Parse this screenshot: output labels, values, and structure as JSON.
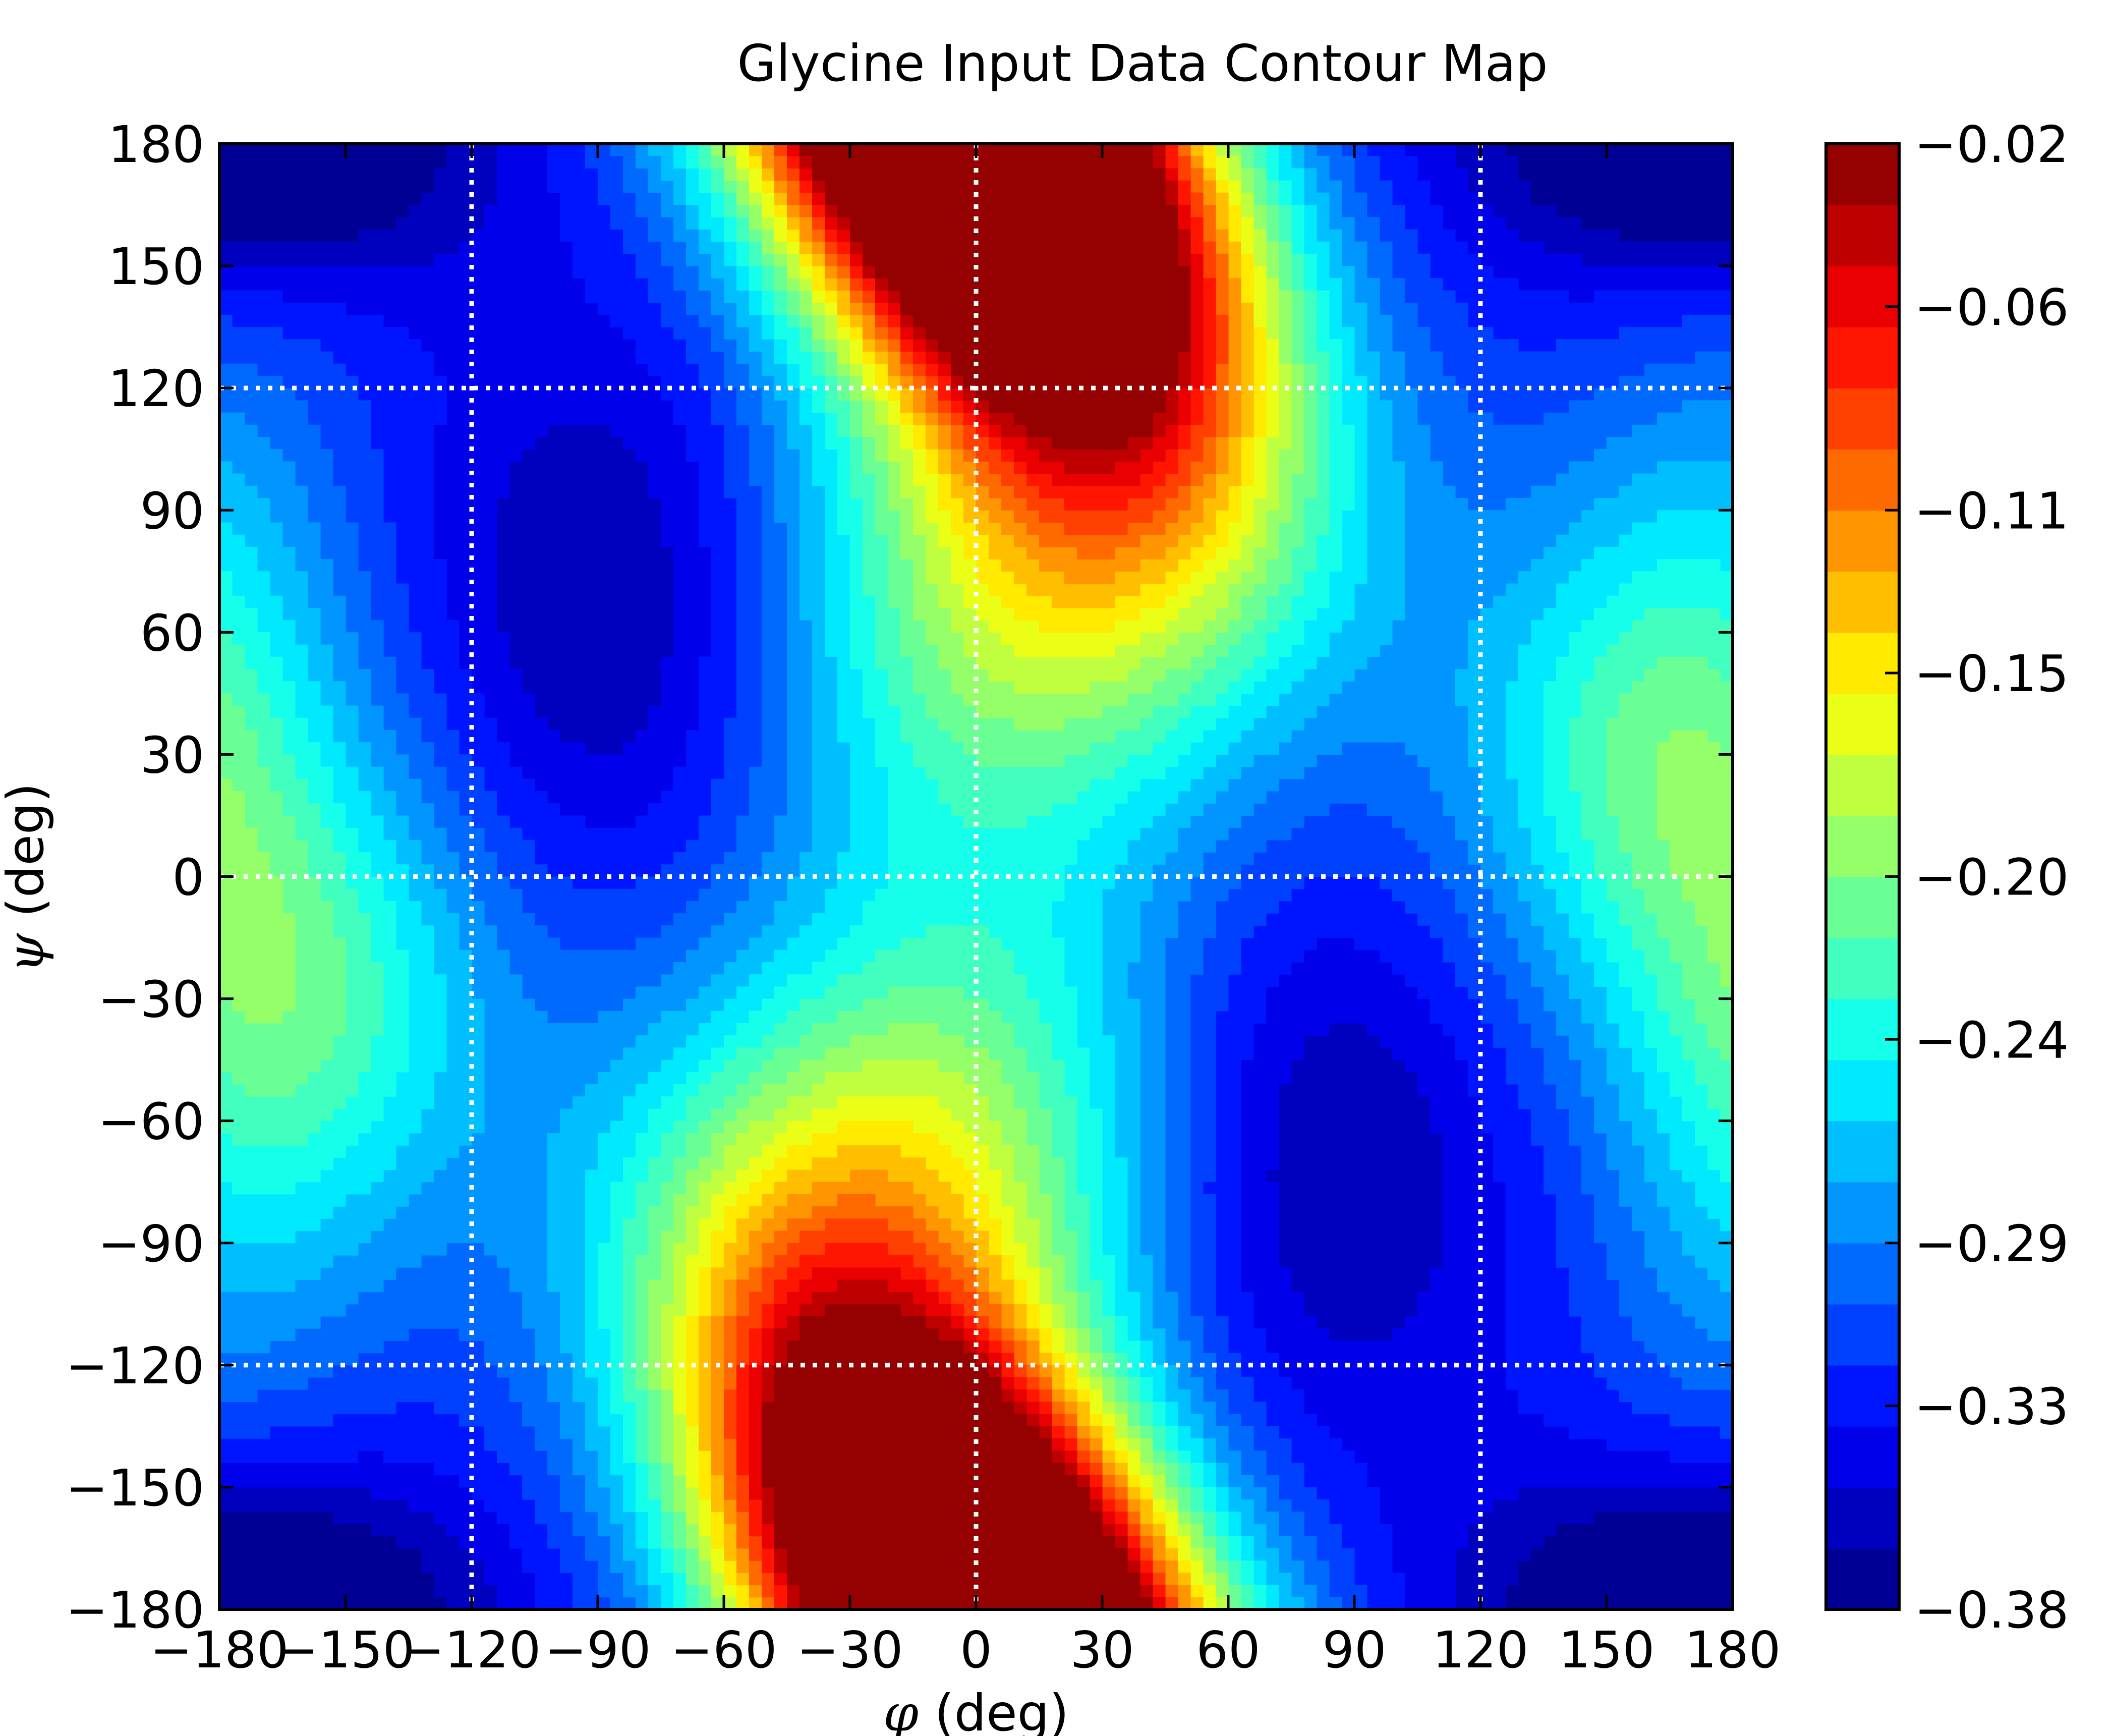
{
  "chart_data": {
    "type": "heatmap",
    "subtype": "filled-contour",
    "title": "Glycine Input Data Contour Map",
    "xlabel": {
      "symbol": "φ",
      "text": " (deg)"
    },
    "ylabel": {
      "symbol": "ψ",
      "text": " (deg)"
    },
    "xlim": [
      -180,
      180
    ],
    "ylim": [
      -180,
      180
    ],
    "xticks": [
      -180,
      -150,
      -120,
      -90,
      -60,
      -30,
      0,
      30,
      60,
      90,
      120,
      150,
      180
    ],
    "yticks": [
      -180,
      -150,
      -120,
      -90,
      -60,
      -30,
      0,
      30,
      60,
      90,
      120,
      150,
      180
    ],
    "xtick_labels": [
      "−180",
      "−150",
      "−120",
      "−90",
      "−60",
      "−30",
      "0",
      "30",
      "60",
      "90",
      "120",
      "150",
      "180"
    ],
    "ytick_labels": [
      "−180",
      "−150",
      "−120",
      "−90",
      "−60",
      "−30",
      "0",
      "30",
      "60",
      "90",
      "120",
      "150",
      "180"
    ],
    "grid": {
      "on": true,
      "style": "dotted",
      "color": "#ffffff",
      "x_lines": [
        -120,
        0,
        120
      ],
      "y_lines": [
        -120,
        0,
        120
      ]
    },
    "colormap": "jet",
    "colorbar": {
      "min": -0.38,
      "max": -0.02,
      "tick_values": [
        -0.02,
        -0.06,
        -0.11,
        -0.15,
        -0.2,
        -0.24,
        -0.29,
        -0.33,
        -0.38
      ],
      "tick_labels": [
        "−0.02",
        "−0.06",
        "−0.11",
        "−0.15",
        "−0.20",
        "−0.24",
        "−0.29",
        "−0.33",
        "−0.38"
      ],
      "levels": 24
    },
    "features": [
      {
        "kind": "max",
        "phi": 15,
        "psi": 165,
        "value": -0.03,
        "sx": 32,
        "sy": 55,
        "rot": -30
      },
      {
        "kind": "max",
        "phi": -15,
        "psi": -165,
        "value": -0.03,
        "sx": 32,
        "sy": 55,
        "rot": -30
      },
      {
        "kind": "min",
        "phi": -85,
        "psi": 65,
        "value": -0.375,
        "sx": 30,
        "sy": 45,
        "rot": 0
      },
      {
        "kind": "min",
        "phi": 80,
        "psi": -70,
        "value": -0.375,
        "sx": 30,
        "sy": 45,
        "rot": 0
      },
      {
        "kind": "min",
        "phi": -160,
        "psi": 168,
        "value": -0.36,
        "sx": 35,
        "sy": 20,
        "rot": 0
      },
      {
        "kind": "min",
        "phi": 160,
        "psi": 168,
        "value": -0.36,
        "sx": 35,
        "sy": 20,
        "rot": 0
      },
      {
        "kind": "min",
        "phi": -160,
        "psi": -168,
        "value": -0.36,
        "sx": 35,
        "sy": 20,
        "rot": 0
      },
      {
        "kind": "min",
        "phi": 160,
        "psi": -168,
        "value": -0.36,
        "sx": 35,
        "sy": 20,
        "rot": 0
      },
      {
        "kind": "plateau",
        "phi": 20,
        "psi": 75,
        "value": -0.21,
        "sx": 45,
        "sy": 40,
        "rot": 0
      },
      {
        "kind": "plateau",
        "phi": -20,
        "psi": -75,
        "value": -0.21,
        "sx": 45,
        "sy": 40,
        "rot": 0
      },
      {
        "kind": "saddle",
        "phi": 0,
        "psi": 0,
        "value": -0.27,
        "sx": 40,
        "sy": 60,
        "rot": 0
      },
      {
        "kind": "saddle",
        "phi": 150,
        "psi": 30,
        "value": -0.25,
        "sx": 30,
        "sy": 45,
        "rot": 0
      },
      {
        "kind": "saddle",
        "phi": -150,
        "psi": -30,
        "value": -0.25,
        "sx": 30,
        "sy": 45,
        "rot": 0
      },
      {
        "kind": "edge",
        "phi": 180,
        "psi": 60,
        "value": -0.28,
        "sx": 25,
        "sy": 60,
        "rot": 0
      },
      {
        "kind": "edge",
        "phi": -180,
        "psi": -60,
        "value": -0.28,
        "sx": 25,
        "sy": 60,
        "rot": 0
      }
    ]
  }
}
